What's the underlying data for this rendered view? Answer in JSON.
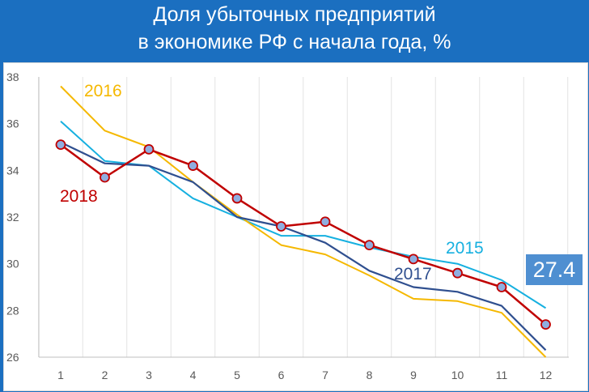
{
  "header": {
    "title_line1": "Доля убыточных предприятий",
    "title_line2": "в экономике РФ с начала года, %"
  },
  "callout": {
    "value": "27.4"
  },
  "colors": {
    "background": "#1b6fc0",
    "s2015": "#16b0e0",
    "s2016": "#f5b800",
    "s2017": "#2f4f8f",
    "s2018": "#c00000",
    "marker_fill": "#8faee0",
    "callout_bg": "#4f8fd1"
  },
  "chart_data": {
    "type": "line",
    "x": [
      1,
      2,
      3,
      4,
      5,
      6,
      7,
      8,
      9,
      10,
      11,
      12
    ],
    "ylim": [
      26,
      38
    ],
    "yticks": [
      26,
      28,
      30,
      32,
      34,
      36,
      38
    ],
    "grid": "vertical",
    "series": [
      {
        "key": "s2015",
        "name": "2015",
        "values": [
          36.1,
          34.4,
          34.2,
          32.8,
          32.0,
          31.2,
          31.2,
          30.7,
          30.3,
          30.0,
          29.3,
          28.1
        ]
      },
      {
        "key": "s2016",
        "name": "2016",
        "values": [
          37.6,
          35.7,
          35.0,
          33.5,
          32.1,
          30.8,
          30.4,
          29.5,
          28.5,
          28.4,
          27.9,
          26.0
        ]
      },
      {
        "key": "s2017",
        "name": "2017",
        "values": [
          35.2,
          34.3,
          34.2,
          33.5,
          32.0,
          31.6,
          30.9,
          29.7,
          29.0,
          28.8,
          28.2,
          26.3
        ]
      },
      {
        "key": "s2018",
        "name": "2018",
        "values": [
          35.1,
          33.7,
          34.9,
          34.2,
          32.8,
          31.6,
          31.8,
          30.8,
          30.2,
          29.6,
          29.0,
          27.4
        ],
        "markers": true
      }
    ]
  }
}
